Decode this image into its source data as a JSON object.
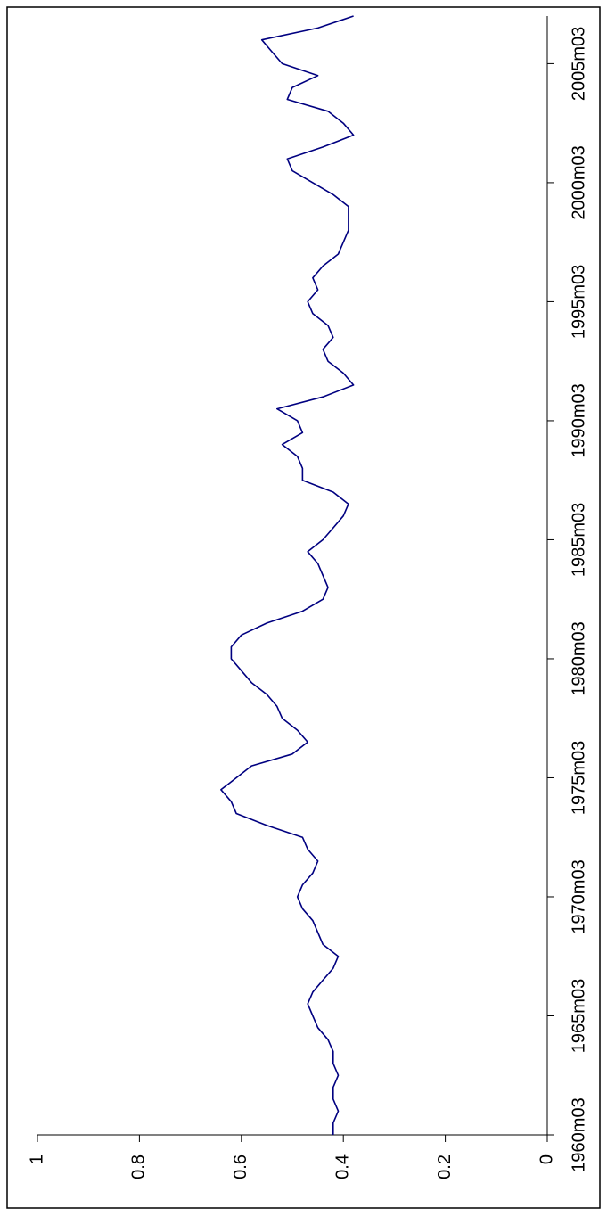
{
  "chart_data": {
    "type": "line",
    "x": [
      "1960m03",
      "1960m09",
      "1961m03",
      "1961m09",
      "1962m03",
      "1962m09",
      "1963m03",
      "1963m09",
      "1964m03",
      "1964m09",
      "1965m03",
      "1965m09",
      "1966m03",
      "1966m09",
      "1967m03",
      "1967m09",
      "1968m03",
      "1968m09",
      "1969m03",
      "1969m09",
      "1970m03",
      "1970m09",
      "1971m03",
      "1971m09",
      "1972m03",
      "1972m09",
      "1973m03",
      "1973m09",
      "1974m03",
      "1974m09",
      "1975m03",
      "1975m09",
      "1976m03",
      "1976m09",
      "1977m03",
      "1977m09",
      "1978m03",
      "1978m09",
      "1979m03",
      "1979m09",
      "1980m03",
      "1980m09",
      "1981m03",
      "1981m09",
      "1982m03",
      "1982m09",
      "1983m03",
      "1983m09",
      "1984m03",
      "1984m09",
      "1985m03",
      "1985m09",
      "1986m03",
      "1986m09",
      "1987m03",
      "1987m09",
      "1988m03",
      "1988m09",
      "1989m03",
      "1989m09",
      "1990m03",
      "1990m09",
      "1991m03",
      "1991m09",
      "1992m03",
      "1992m09",
      "1993m03",
      "1993m09",
      "1994m03",
      "1994m09",
      "1995m03",
      "1995m09",
      "1996m03",
      "1996m09",
      "1997m03",
      "1997m09",
      "1998m03",
      "1998m09",
      "1999m03",
      "1999m09",
      "2000m03",
      "2000m09",
      "2001m03",
      "2001m09",
      "2002m03",
      "2002m09",
      "2003m03",
      "2003m09",
      "2004m03",
      "2004m09",
      "2005m03",
      "2005m09",
      "2006m03",
      "2006m09",
      "2007m03"
    ],
    "series": [
      {
        "color": "#000080",
        "values": [
          0.42,
          0.42,
          0.41,
          0.42,
          0.42,
          0.41,
          0.42,
          0.42,
          0.43,
          0.45,
          0.46,
          0.47,
          0.46,
          0.44,
          0.42,
          0.41,
          0.44,
          0.45,
          0.46,
          0.48,
          0.49,
          0.48,
          0.46,
          0.45,
          0.47,
          0.48,
          0.55,
          0.61,
          0.62,
          0.64,
          0.61,
          0.58,
          0.5,
          0.47,
          0.49,
          0.52,
          0.53,
          0.55,
          0.58,
          0.6,
          0.62,
          0.62,
          0.6,
          0.55,
          0.48,
          0.44,
          0.43,
          0.44,
          0.45,
          0.47,
          0.44,
          0.42,
          0.4,
          0.39,
          0.42,
          0.48,
          0.48,
          0.49,
          0.52,
          0.48,
          0.49,
          0.53,
          0.44,
          0.38,
          0.4,
          0.43,
          0.44,
          0.42,
          0.43,
          0.46,
          0.47,
          0.45,
          0.46,
          0.44,
          0.41,
          0.4,
          0.39,
          0.39,
          0.39,
          0.42,
          0.46,
          0.5,
          0.51,
          0.44,
          0.38,
          0.4,
          0.43,
          0.51,
          0.5,
          0.45,
          0.52,
          0.54,
          0.56,
          0.45,
          0.38
        ]
      }
    ],
    "xlim": [
      "1960m03",
      "2007m03"
    ],
    "xticks": [
      "1960m03",
      "1965m03",
      "1970m03",
      "1975m03",
      "1980m03",
      "1985m03",
      "1990m03",
      "1995m03",
      "2000m03",
      "2005m03"
    ],
    "ylim": [
      0,
      1
    ],
    "yticks": [
      0,
      0.2,
      0.4,
      0.6,
      0.8,
      1
    ]
  }
}
